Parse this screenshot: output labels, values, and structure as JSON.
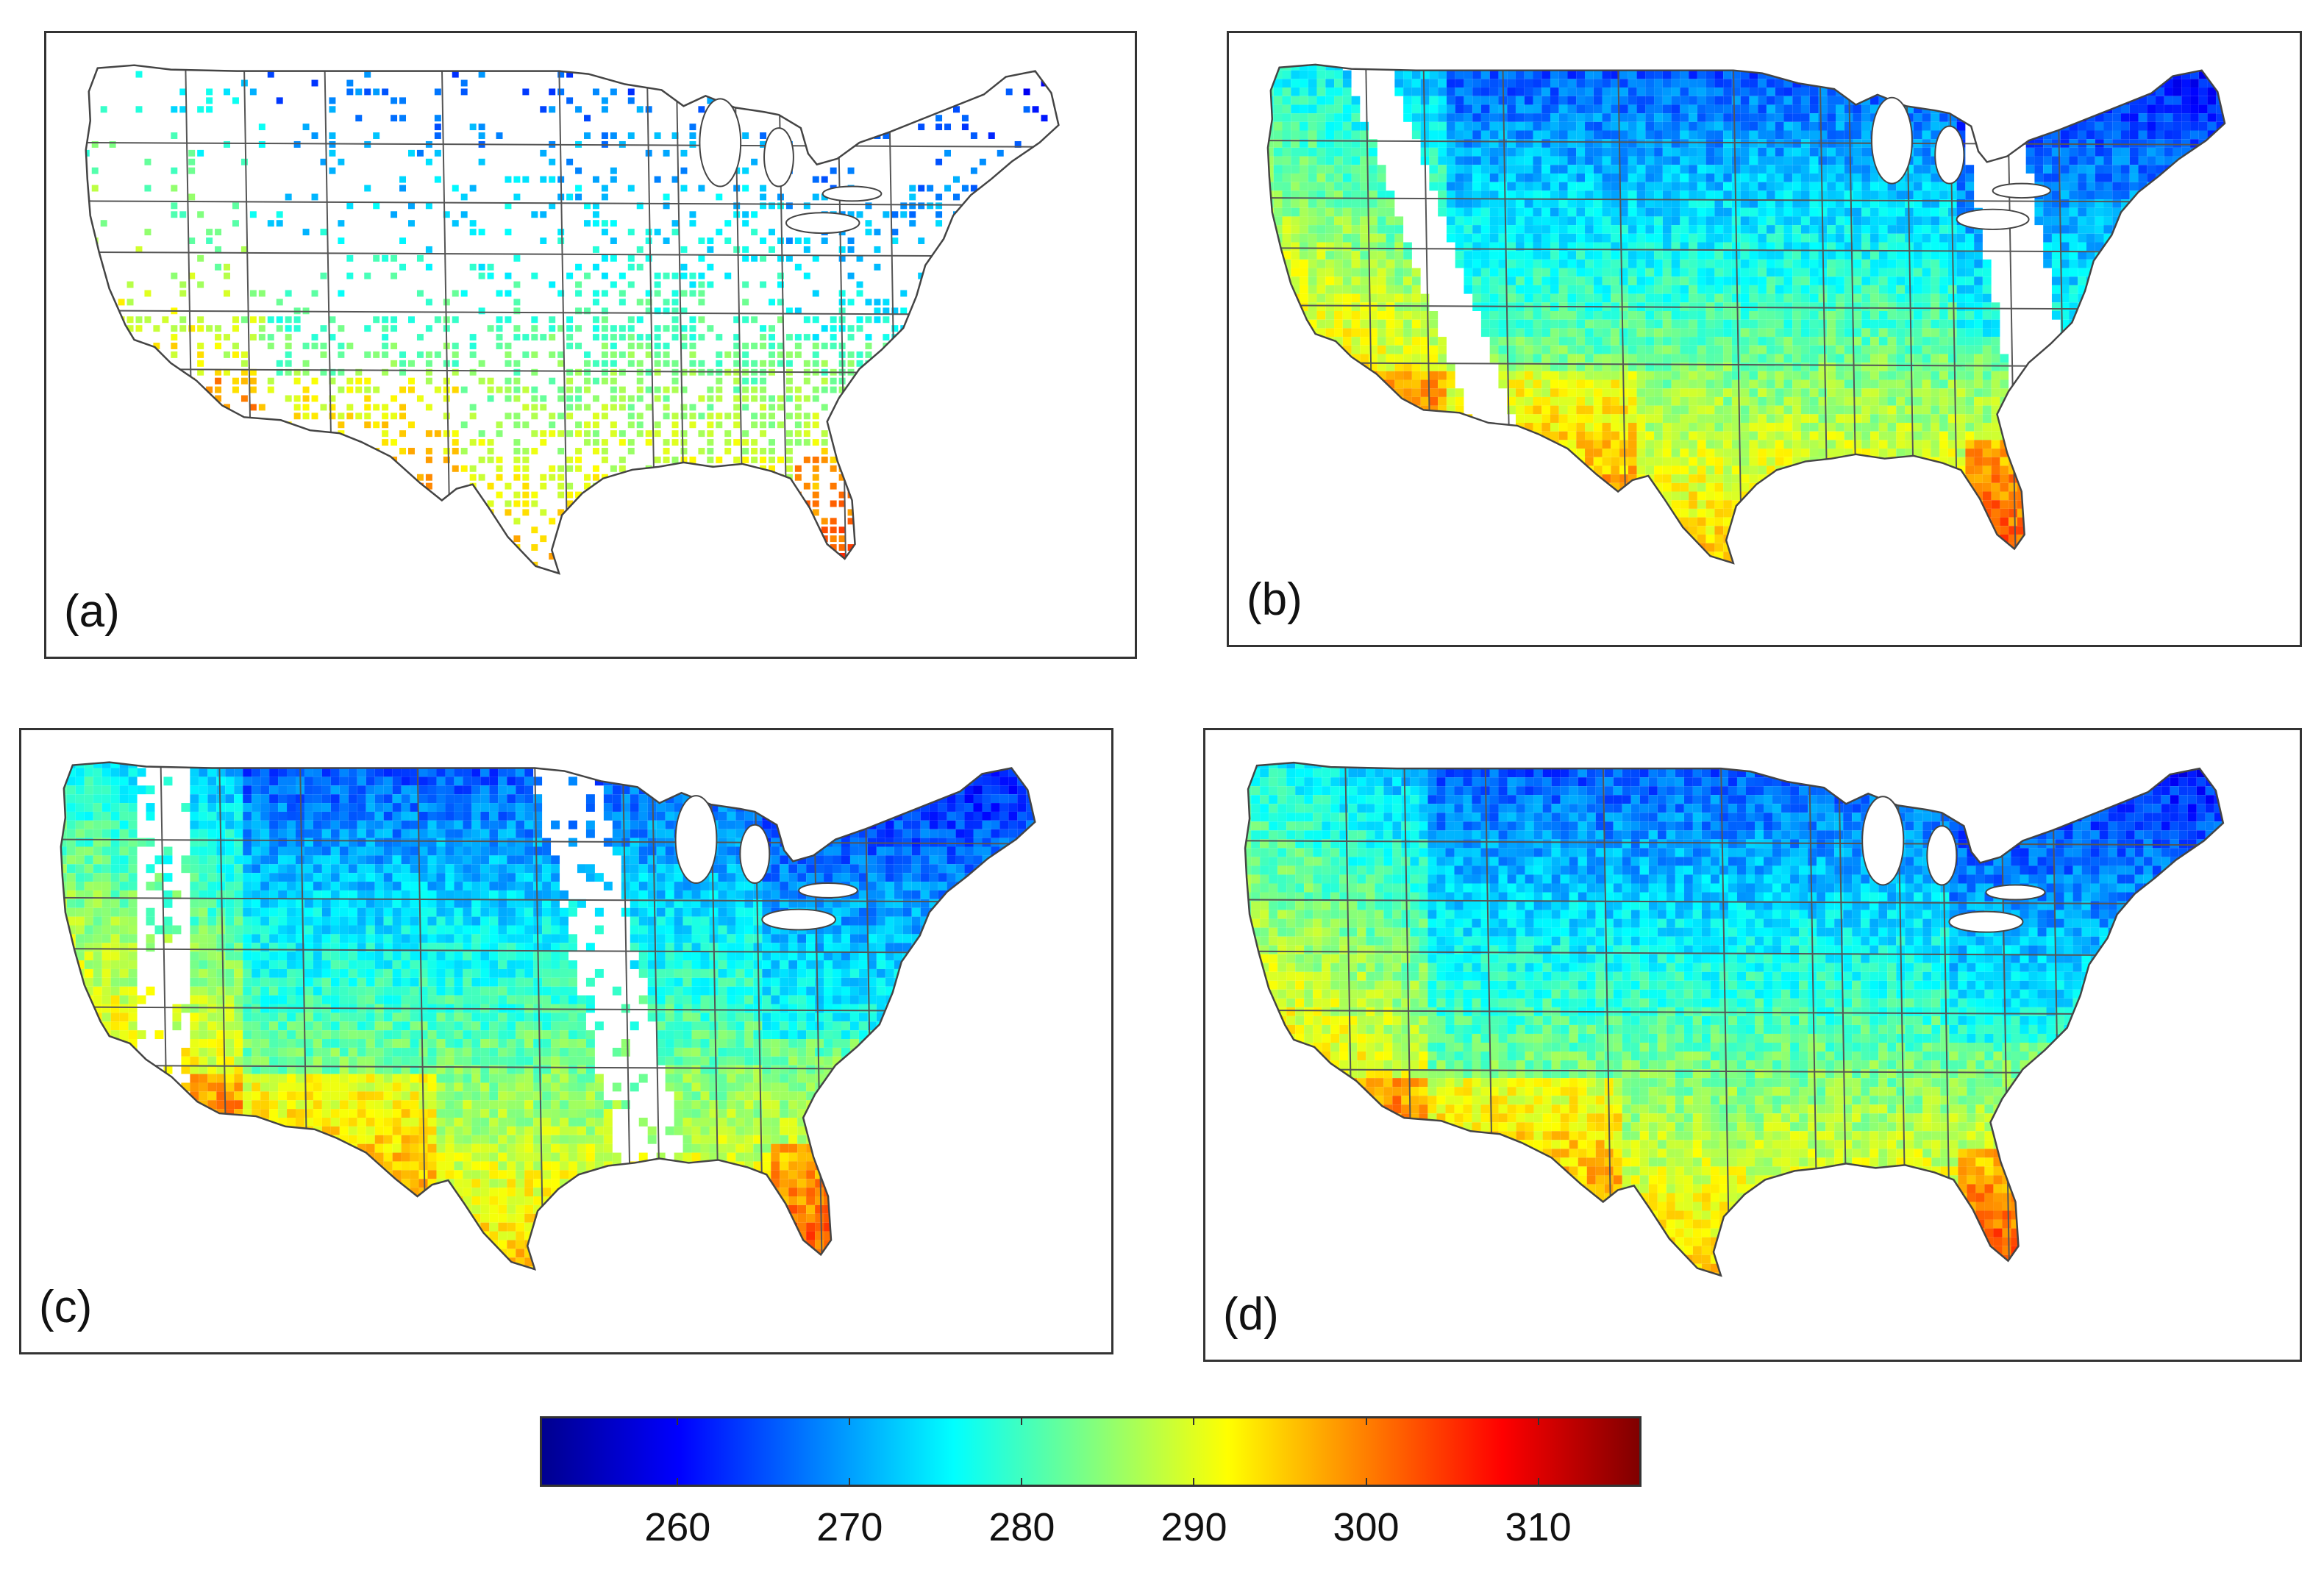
{
  "figure": {
    "panels": [
      {
        "id": "a",
        "label": "(a)",
        "coverage": "sparse stations"
      },
      {
        "id": "b",
        "label": "(b)",
        "coverage": "swath with two gaps"
      },
      {
        "id": "c",
        "label": "(c)",
        "coverage": "swath with two gaps plus sparse fill"
      },
      {
        "id": "d",
        "label": "(d)",
        "coverage": "full"
      }
    ]
  },
  "colorbar": {
    "min": 252,
    "max": 316,
    "ticks": [
      "260",
      "270",
      "280",
      "290",
      "300",
      "310"
    ],
    "colors": [
      "#00008f",
      "#0000ff",
      "#0080ff",
      "#00ffff",
      "#80ff80",
      "#ffff00",
      "#ff8000",
      "#ff0000",
      "#800000"
    ]
  },
  "colors": {
    "background": "#ffffff",
    "border": "#333333",
    "state_lines": "#555555"
  }
}
